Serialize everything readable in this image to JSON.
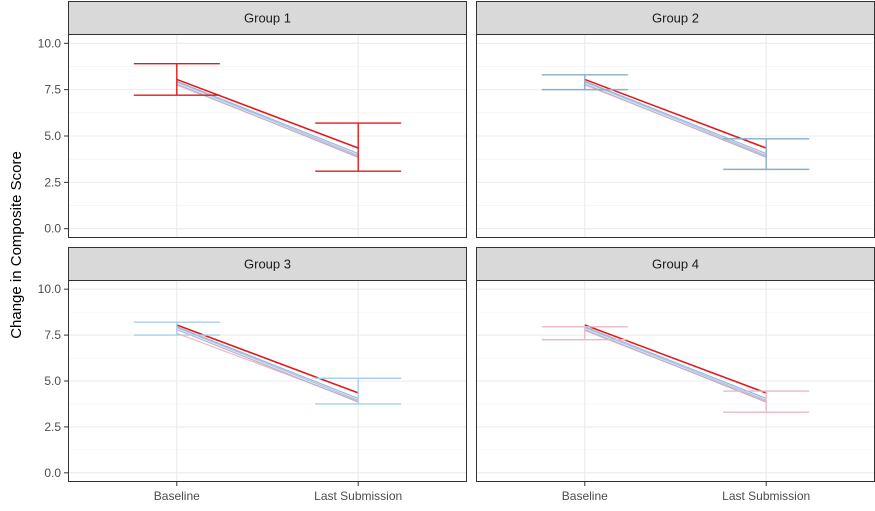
{
  "chart_data": {
    "type": "line",
    "ylabel": "Change in Composite Score",
    "xlabel": "",
    "categories": [
      "Baseline",
      "Last Submission"
    ],
    "ylim": [
      -0.5,
      10.5
    ],
    "yticks": [
      0.0,
      2.5,
      5.0,
      7.5,
      10.0
    ],
    "ytick_labels": [
      "0.0",
      "2.5",
      "5.0",
      "7.5",
      "10.0"
    ],
    "grid": true,
    "panels": [
      {
        "label": "Group 1",
        "highlight_color": "#e31a1c",
        "errorbars": [
          {
            "category": "Baseline",
            "low": 7.2,
            "high": 8.9
          },
          {
            "category": "Last Submission",
            "low": 3.1,
            "high": 5.7
          }
        ],
        "series": [
          {
            "color": "#e31a1c",
            "values": [
              8.05,
              4.35
            ]
          },
          {
            "color": "#9ab8d8",
            "values": [
              7.95,
              4.05
            ]
          },
          {
            "color": "#c0b0c8",
            "values": [
              7.8,
              3.85
            ]
          },
          {
            "color": "#a8c8e8",
            "values": [
              7.9,
              3.95
            ]
          },
          {
            "color": "#e8b8c8",
            "values": [
              7.75,
              3.9
            ]
          }
        ]
      },
      {
        "label": "Group 2",
        "highlight_color": "#8aaec8",
        "errorbars": [
          {
            "category": "Baseline",
            "low": 7.5,
            "high": 8.3
          },
          {
            "category": "Last Submission",
            "low": 3.2,
            "high": 4.85
          }
        ],
        "series": [
          {
            "color": "#e31a1c",
            "values": [
              8.05,
              4.35
            ]
          },
          {
            "color": "#9ab8d8",
            "values": [
              7.95,
              4.05
            ]
          },
          {
            "color": "#c0b0c8",
            "values": [
              7.8,
              3.85
            ]
          },
          {
            "color": "#a8c8e8",
            "values": [
              7.9,
              3.95
            ]
          },
          {
            "color": "#e8b8c8",
            "values": [
              7.75,
              3.9
            ]
          }
        ]
      },
      {
        "label": "Group 3",
        "highlight_color": "#a8cfe8",
        "errorbars": [
          {
            "category": "Baseline",
            "low": 7.5,
            "high": 8.2
          },
          {
            "category": "Last Submission",
            "low": 3.75,
            "high": 5.15
          }
        ],
        "series": [
          {
            "color": "#e31a1c",
            "values": [
              8.05,
              4.35
            ]
          },
          {
            "color": "#9ab8d8",
            "values": [
              7.95,
              4.05
            ]
          },
          {
            "color": "#c0b0c8",
            "values": [
              7.8,
              3.85
            ]
          },
          {
            "color": "#a8c8e8",
            "values": [
              7.9,
              3.95
            ]
          },
          {
            "color": "#e8b8c8",
            "values": [
              7.6,
              3.9
            ]
          }
        ]
      },
      {
        "label": "Group 4",
        "highlight_color": "#e8b8c8",
        "errorbars": [
          {
            "category": "Baseline",
            "low": 7.25,
            "high": 7.95
          },
          {
            "category": "Last Submission",
            "low": 3.3,
            "high": 4.45
          }
        ],
        "series": [
          {
            "color": "#e31a1c",
            "values": [
              8.05,
              4.35
            ]
          },
          {
            "color": "#9ab8d8",
            "values": [
              7.95,
              4.05
            ]
          },
          {
            "color": "#c0b0c8",
            "values": [
              7.8,
              3.85
            ]
          },
          {
            "color": "#a8c8e8",
            "values": [
              7.9,
              3.95
            ]
          },
          {
            "color": "#e8b8c8",
            "values": [
              7.75,
              3.9
            ]
          }
        ]
      }
    ]
  }
}
